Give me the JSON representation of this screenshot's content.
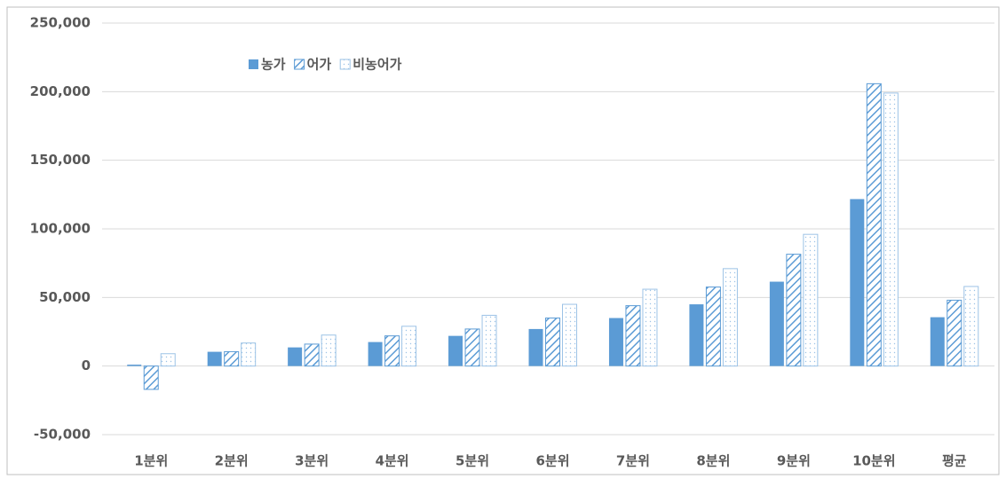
{
  "chart_data": {
    "type": "bar",
    "categories": [
      "1분위",
      "2분위",
      "3분위",
      "4분위",
      "5분위",
      "6분위",
      "7분위",
      "8분위",
      "9분위",
      "10분위",
      "평균"
    ],
    "series": [
      {
        "name": "농가",
        "color": "#5b9bd5",
        "pattern": "solid",
        "values": [
          1000,
          10400,
          13600,
          17500,
          22000,
          27000,
          35000,
          45000,
          61500,
          121700,
          35600
        ]
      },
      {
        "name": "어가",
        "color": "#5b9bd5",
        "pattern": "hatch",
        "values": [
          -17000,
          10500,
          16000,
          22000,
          27000,
          35000,
          44000,
          57600,
          81500,
          205800,
          48000
        ]
      },
      {
        "name": "비농어가",
        "color": "#9dc3e6",
        "pattern": "dots",
        "values": [
          9000,
          16800,
          22600,
          29000,
          37000,
          45000,
          56000,
          71000,
          96000,
          199000,
          58000
        ]
      }
    ],
    "ylim": [
      -50000,
      250000
    ],
    "yticks": [
      {
        "value": -50000,
        "label": "-50,000"
      },
      0,
      {
        "value": 50000,
        "label": "50,000"
      },
      {
        "value": 100000,
        "label": "100,000"
      },
      {
        "value": 150000,
        "label": "150,000"
      },
      {
        "value": 200000,
        "label": "200,000"
      },
      {
        "value": 250000,
        "label": "250,000"
      }
    ],
    "grid": true,
    "legend": "top-left"
  }
}
